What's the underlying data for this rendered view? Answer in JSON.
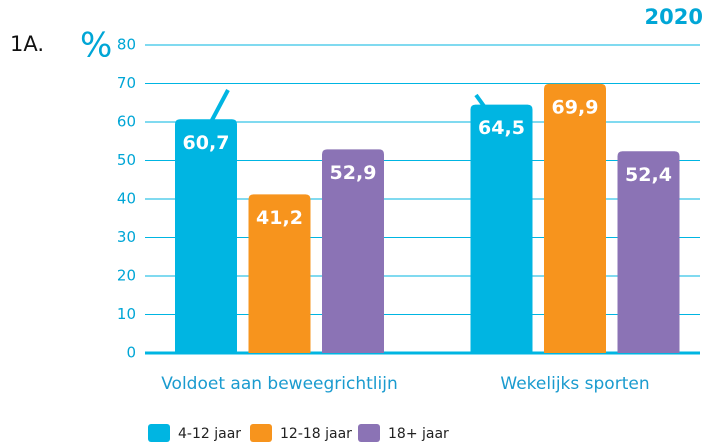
{
  "chart_data": {
    "type": "bar",
    "label": "1A.",
    "ylabel": "%",
    "year": "2020",
    "categories": [
      "Voldoet aan beweegrichtlijn",
      "Wekelijks sporten"
    ],
    "series": [
      {
        "name": "4-12 jaar",
        "color": "#00b5e2",
        "values": [
          60.7,
          64.5
        ],
        "value_labels": [
          "60,7",
          "64,5"
        ]
      },
      {
        "name": "12-18 jaar",
        "color": "#f7941d",
        "values": [
          41.2,
          69.9
        ],
        "value_labels": [
          "41,2",
          "69,9"
        ]
      },
      {
        "name": "18+ jaar",
        "color": "#8b73b5",
        "values": [
          52.9,
          52.4
        ],
        "value_labels": [
          "52,9",
          "52,4"
        ]
      }
    ],
    "ylim": [
      0,
      80
    ],
    "yticks": [
      0,
      10,
      20,
      30,
      40,
      50,
      60,
      70,
      80
    ],
    "grid": true
  }
}
